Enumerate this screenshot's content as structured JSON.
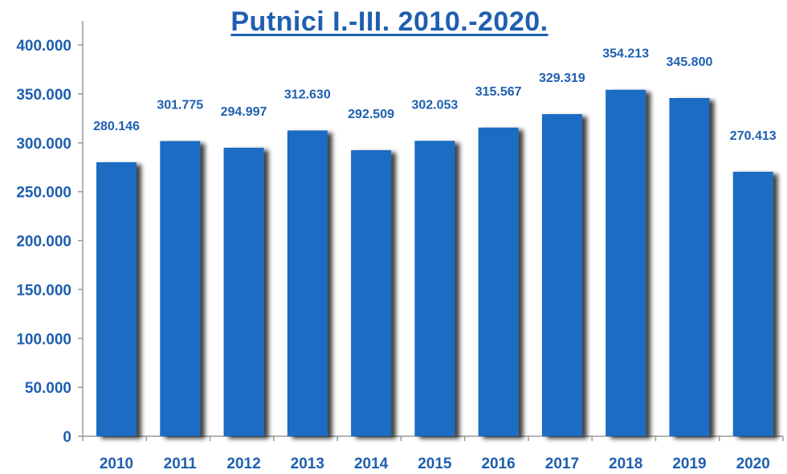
{
  "chart_data": {
    "type": "bar",
    "title": "Putnici I.-III. 2010.-2020.",
    "xlabel": "",
    "ylabel": "",
    "categories": [
      "2010",
      "2011",
      "2012",
      "2013",
      "2014",
      "2015",
      "2016",
      "2017",
      "2018",
      "2019",
      "2020"
    ],
    "values": [
      280146,
      301775,
      294997,
      312630,
      292509,
      302053,
      315567,
      329319,
      354213,
      345800,
      270413
    ],
    "value_labels": [
      "280.146",
      "301.775",
      "294.997",
      "312.630",
      "292.509",
      "302.053",
      "315.567",
      "329.319",
      "354.213",
      "345.800",
      "270.413"
    ],
    "ylim": [
      0,
      400000
    ],
    "yticks": [
      0,
      50000,
      100000,
      150000,
      200000,
      250000,
      300000,
      350000,
      400000
    ],
    "ytick_labels": [
      "0",
      "50.000",
      "100.000",
      "150.000",
      "200.000",
      "250.000",
      "300.000",
      "350.000",
      "400.000"
    ],
    "grid": false,
    "legend": "none",
    "colors": {
      "bar": "#1f6cc4",
      "bar_shadow": "#2a2a2a",
      "text": "#1f5fb0",
      "axis": "#9a9a9a"
    }
  }
}
